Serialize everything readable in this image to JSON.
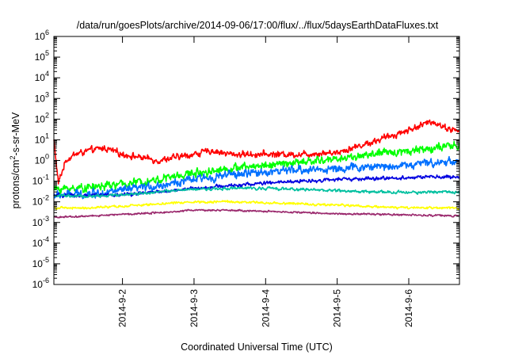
{
  "chart_data": {
    "type": "line",
    "title": "/data/run/goesPlots/archive/2014-09-06/17:00/flux/../flux/5daysEarthDataFluxes.txt",
    "xlabel": "Coordinated Universal Time (UTC)",
    "ylabel_parts": {
      "base": "protons/cm",
      "sup": "2",
      "rest": "-s-sr-MeV"
    },
    "y_scale": "log",
    "ylim_exponents": [
      -6,
      6
    ],
    "y_tick_exponents": [
      -6,
      -5,
      -4,
      -3,
      -2,
      -1,
      0,
      1,
      2,
      3,
      4,
      5,
      6
    ],
    "y_tick_base": "10",
    "xlim": [
      "2014-09-01 01:00",
      "2014-09-06 17:00"
    ],
    "x_ticks": [
      {
        "value": "2014-09-02",
        "label": "2014-9-2"
      },
      {
        "value": "2014-09-03",
        "label": "2014-9-3"
      },
      {
        "value": "2014-09-04",
        "label": "2014-9-4"
      },
      {
        "value": "2014-09-05",
        "label": "2014-9-5"
      },
      {
        "value": "2014-09-06",
        "label": "2014-9-6"
      }
    ],
    "grid": false,
    "legend": "none",
    "series": [
      {
        "color": "#ff0000",
        "noise": 0.22,
        "x": [
          "2014-09-01 01:00",
          "2014-09-01 02:30",
          "2014-09-01 05:00",
          "2014-09-01 08:00",
          "2014-09-01 13:00",
          "2014-09-01 18:00",
          "2014-09-02 00:00",
          "2014-09-02 12:00",
          "2014-09-03 00:00",
          "2014-09-03 06:00",
          "2014-09-03 12:00",
          "2014-09-04 00:00",
          "2014-09-04 12:00",
          "2014-09-05 00:00",
          "2014-09-05 12:00",
          "2014-09-06 00:00",
          "2014-09-06 08:00",
          "2014-09-06 12:00",
          "2014-09-06 17:00"
        ],
        "y": [
          10,
          0.08,
          1,
          2,
          3,
          4,
          2,
          1,
          2,
          3,
          2,
          2,
          2,
          2.5,
          8,
          30,
          80,
          40,
          25
        ]
      },
      {
        "color": "#00ff00",
        "noise": 0.28,
        "x": [
          "2014-09-01 01:00",
          "2014-09-01 12:00",
          "2014-09-02 00:00",
          "2014-09-02 12:00",
          "2014-09-03 00:00",
          "2014-09-03 12:00",
          "2014-09-04 00:00",
          "2014-09-04 12:00",
          "2014-09-05 00:00",
          "2014-09-05 12:00",
          "2014-09-06 00:00",
          "2014-09-06 08:00",
          "2014-09-06 17:00"
        ],
        "y": [
          0.04,
          0.05,
          0.07,
          0.12,
          0.25,
          0.4,
          0.6,
          0.8,
          1.2,
          2,
          3,
          4,
          5
        ]
      },
      {
        "color": "#0070ff",
        "noise": 0.28,
        "x": [
          "2014-09-01 01:00",
          "2014-09-01 12:00",
          "2014-09-02 00:00",
          "2014-09-02 12:00",
          "2014-09-03 00:00",
          "2014-09-03 12:00",
          "2014-09-04 00:00",
          "2014-09-04 12:00",
          "2014-09-05 00:00",
          "2014-09-05 12:00",
          "2014-09-06 00:00",
          "2014-09-06 08:00",
          "2014-09-06 17:00"
        ],
        "y": [
          0.02,
          0.025,
          0.035,
          0.06,
          0.12,
          0.2,
          0.28,
          0.35,
          0.4,
          0.5,
          0.6,
          0.8,
          1
        ]
      },
      {
        "color": "#0000e0",
        "noise": 0.12,
        "x": [
          "2014-09-01 01:00",
          "2014-09-01 12:00",
          "2014-09-02 00:00",
          "2014-09-02 12:00",
          "2014-09-03 00:00",
          "2014-09-03 12:00",
          "2014-09-04 00:00",
          "2014-09-04 12:00",
          "2014-09-05 00:00",
          "2014-09-05 12:00",
          "2014-09-06 00:00",
          "2014-09-06 08:00",
          "2014-09-06 17:00"
        ],
        "y": [
          0.02,
          0.02,
          0.022,
          0.03,
          0.045,
          0.06,
          0.08,
          0.1,
          0.12,
          0.13,
          0.15,
          0.16,
          0.15
        ]
      },
      {
        "color": "#00c0a0",
        "noise": 0.1,
        "x": [
          "2014-09-01 01:00",
          "2014-09-01 12:00",
          "2014-09-02 00:00",
          "2014-09-02 12:00",
          "2014-09-03 00:00",
          "2014-09-03 12:00",
          "2014-09-04 00:00",
          "2014-09-04 12:00",
          "2014-09-05 00:00",
          "2014-09-05 12:00",
          "2014-09-06 00:00",
          "2014-09-06 08:00",
          "2014-09-06 17:00"
        ],
        "y": [
          0.02,
          0.018,
          0.022,
          0.03,
          0.04,
          0.045,
          0.045,
          0.04,
          0.035,
          0.03,
          0.028,
          0.03,
          0.03
        ]
      },
      {
        "color": "#ffff00",
        "noise": 0.08,
        "x": [
          "2014-09-01 01:00",
          "2014-09-01 12:00",
          "2014-09-02 00:00",
          "2014-09-02 12:00",
          "2014-09-03 00:00",
          "2014-09-03 12:00",
          "2014-09-04 00:00",
          "2014-09-04 12:00",
          "2014-09-05 00:00",
          "2014-09-05 12:00",
          "2014-09-06 00:00",
          "2014-09-06 08:00",
          "2014-09-06 17:00"
        ],
        "y": [
          0.005,
          0.005,
          0.006,
          0.008,
          0.01,
          0.01,
          0.009,
          0.008,
          0.007,
          0.006,
          0.005,
          0.005,
          0.005
        ]
      },
      {
        "color": "#9b2a6e",
        "noise": 0.06,
        "x": [
          "2014-09-01 01:00",
          "2014-09-01 12:00",
          "2014-09-02 00:00",
          "2014-09-02 12:00",
          "2014-09-03 00:00",
          "2014-09-03 12:00",
          "2014-09-04 00:00",
          "2014-09-04 12:00",
          "2014-09-05 00:00",
          "2014-09-05 12:00",
          "2014-09-06 00:00",
          "2014-09-06 08:00",
          "2014-09-06 17:00"
        ],
        "y": [
          0.0018,
          0.002,
          0.0025,
          0.003,
          0.004,
          0.0038,
          0.0034,
          0.003,
          0.0027,
          0.0025,
          0.0023,
          0.0022,
          0.0021
        ]
      }
    ]
  }
}
